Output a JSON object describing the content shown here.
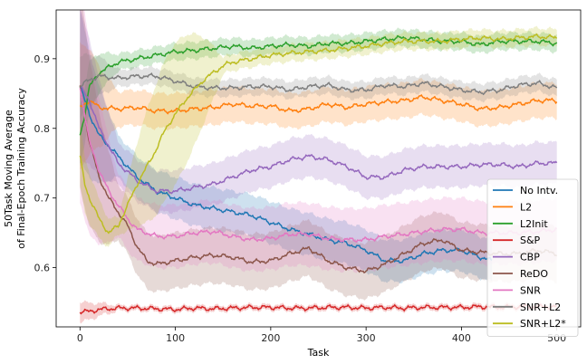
{
  "chart_data": {
    "type": "line",
    "title": "",
    "xlabel": "Task",
    "ylabel_lines": [
      "50Task Moving Average",
      "of Final-Epoch Training Accuracy"
    ],
    "xlim": [
      -25,
      525
    ],
    "ylim": [
      0.515,
      0.97
    ],
    "xticks": [
      0,
      100,
      200,
      300,
      400,
      500
    ],
    "yticks": [
      0.6,
      0.7,
      0.8,
      0.9
    ],
    "legend_position": "lower-right",
    "grid": false,
    "series": [
      {
        "name": "No Intv.",
        "color": "#1f77b4",
        "points": [
          [
            0,
            0.86
          ],
          [
            10,
            0.82
          ],
          [
            20,
            0.79
          ],
          [
            40,
            0.76
          ],
          [
            60,
            0.73
          ],
          [
            80,
            0.71
          ],
          [
            100,
            0.7
          ],
          [
            120,
            0.69
          ],
          [
            140,
            0.685
          ],
          [
            160,
            0.68
          ],
          [
            180,
            0.675
          ],
          [
            200,
            0.665
          ],
          [
            220,
            0.655
          ],
          [
            240,
            0.648
          ],
          [
            260,
            0.64
          ],
          [
            280,
            0.635
          ],
          [
            300,
            0.625
          ],
          [
            320,
            0.61
          ],
          [
            340,
            0.61
          ],
          [
            360,
            0.62
          ],
          [
            380,
            0.625
          ],
          [
            400,
            0.625
          ],
          [
            420,
            0.615
          ],
          [
            432,
            0.61
          ]
        ],
        "band": 0.03
      },
      {
        "name": "L2",
        "color": "#ff7f0e",
        "points": [
          [
            0,
            0.83
          ],
          [
            10,
            0.84
          ],
          [
            20,
            0.83
          ],
          [
            40,
            0.828
          ],
          [
            60,
            0.83
          ],
          [
            80,
            0.825
          ],
          [
            100,
            0.825
          ],
          [
            120,
            0.828
          ],
          [
            140,
            0.83
          ],
          [
            160,
            0.835
          ],
          [
            180,
            0.832
          ],
          [
            200,
            0.832
          ],
          [
            220,
            0.825
          ],
          [
            240,
            0.828
          ],
          [
            260,
            0.835
          ],
          [
            280,
            0.83
          ],
          [
            300,
            0.835
          ],
          [
            320,
            0.838
          ],
          [
            340,
            0.84
          ],
          [
            360,
            0.845
          ],
          [
            380,
            0.84
          ],
          [
            400,
            0.835
          ],
          [
            420,
            0.828
          ],
          [
            440,
            0.83
          ],
          [
            460,
            0.835
          ],
          [
            480,
            0.84
          ],
          [
            500,
            0.84
          ]
        ],
        "band": 0.025
      },
      {
        "name": "L2Init",
        "color": "#2ca02c",
        "points": [
          [
            0,
            0.79
          ],
          [
            5,
            0.82
          ],
          [
            10,
            0.86
          ],
          [
            20,
            0.88
          ],
          [
            40,
            0.895
          ],
          [
            60,
            0.9
          ],
          [
            80,
            0.905
          ],
          [
            100,
            0.91
          ],
          [
            120,
            0.912
          ],
          [
            140,
            0.915
          ],
          [
            160,
            0.918
          ],
          [
            180,
            0.915
          ],
          [
            200,
            0.918
          ],
          [
            220,
            0.92
          ],
          [
            240,
            0.918
          ],
          [
            260,
            0.922
          ],
          [
            280,
            0.922
          ],
          [
            300,
            0.925
          ],
          [
            320,
            0.928
          ],
          [
            340,
            0.93
          ],
          [
            360,
            0.928
          ],
          [
            380,
            0.925
          ],
          [
            400,
            0.925
          ],
          [
            420,
            0.92
          ],
          [
            440,
            0.925
          ],
          [
            460,
            0.925
          ],
          [
            480,
            0.925
          ],
          [
            500,
            0.922
          ]
        ],
        "band": 0.012
      },
      {
        "name": "S&P",
        "color": "#d62728",
        "points": [
          [
            0,
            0.537
          ],
          [
            10,
            0.537
          ],
          [
            20,
            0.54
          ],
          [
            40,
            0.542
          ],
          [
            60,
            0.542
          ],
          [
            80,
            0.541
          ],
          [
            100,
            0.54
          ],
          [
            120,
            0.542
          ],
          [
            140,
            0.541
          ],
          [
            160,
            0.542
          ],
          [
            180,
            0.543
          ],
          [
            200,
            0.543
          ],
          [
            220,
            0.542
          ],
          [
            240,
            0.542
          ],
          [
            260,
            0.543
          ],
          [
            280,
            0.543
          ],
          [
            300,
            0.542
          ],
          [
            320,
            0.543
          ],
          [
            340,
            0.542
          ],
          [
            360,
            0.543
          ],
          [
            380,
            0.543
          ],
          [
            400,
            0.543
          ],
          [
            420,
            0.544
          ],
          [
            440,
            0.543
          ],
          [
            460,
            0.544
          ],
          [
            480,
            0.544
          ],
          [
            500,
            0.544
          ]
        ],
        "band": 0.004
      },
      {
        "name": "CBP",
        "color": "#9467bd",
        "points": [
          [
            0,
            0.86
          ],
          [
            10,
            0.84
          ],
          [
            20,
            0.8
          ],
          [
            40,
            0.75
          ],
          [
            60,
            0.725
          ],
          [
            80,
            0.71
          ],
          [
            100,
            0.71
          ],
          [
            120,
            0.715
          ],
          [
            140,
            0.72
          ],
          [
            160,
            0.73
          ],
          [
            180,
            0.74
          ],
          [
            200,
            0.745
          ],
          [
            220,
            0.755
          ],
          [
            240,
            0.76
          ],
          [
            260,
            0.755
          ],
          [
            280,
            0.745
          ],
          [
            300,
            0.73
          ],
          [
            320,
            0.73
          ],
          [
            340,
            0.74
          ],
          [
            360,
            0.745
          ],
          [
            380,
            0.745
          ],
          [
            400,
            0.745
          ],
          [
            420,
            0.748
          ],
          [
            440,
            0.748
          ],
          [
            460,
            0.745
          ],
          [
            480,
            0.75
          ],
          [
            500,
            0.75
          ]
        ],
        "band": 0.03
      },
      {
        "name": "ReDO",
        "color": "#8c564b",
        "points": [
          [
            0,
            0.86
          ],
          [
            10,
            0.78
          ],
          [
            20,
            0.73
          ],
          [
            30,
            0.7
          ],
          [
            40,
            0.68
          ],
          [
            50,
            0.66
          ],
          [
            60,
            0.63
          ],
          [
            70,
            0.61
          ],
          [
            80,
            0.605
          ],
          [
            100,
            0.61
          ],
          [
            120,
            0.615
          ],
          [
            140,
            0.618
          ],
          [
            160,
            0.615
          ],
          [
            180,
            0.608
          ],
          [
            200,
            0.61
          ],
          [
            220,
            0.62
          ],
          [
            240,
            0.628
          ],
          [
            260,
            0.61
          ],
          [
            280,
            0.6
          ],
          [
            300,
            0.595
          ],
          [
            320,
            0.605
          ],
          [
            340,
            0.62
          ],
          [
            360,
            0.635
          ],
          [
            380,
            0.64
          ],
          [
            400,
            0.625
          ],
          [
            420,
            0.622
          ],
          [
            440,
            0.62
          ],
          [
            460,
            0.62
          ],
          [
            480,
            0.625
          ],
          [
            500,
            0.62
          ]
        ],
        "band": 0.04
      },
      {
        "name": "SNR",
        "color": "#e377c2",
        "points": [
          [
            0,
            0.86
          ],
          [
            10,
            0.78
          ],
          [
            20,
            0.74
          ],
          [
            30,
            0.71
          ],
          [
            40,
            0.69
          ],
          [
            50,
            0.67
          ],
          [
            60,
            0.655
          ],
          [
            80,
            0.645
          ],
          [
            100,
            0.645
          ],
          [
            120,
            0.65
          ],
          [
            140,
            0.652
          ],
          [
            160,
            0.645
          ],
          [
            180,
            0.64
          ],
          [
            200,
            0.642
          ],
          [
            220,
            0.648
          ],
          [
            240,
            0.648
          ],
          [
            260,
            0.642
          ],
          [
            280,
            0.64
          ],
          [
            300,
            0.64
          ],
          [
            320,
            0.645
          ],
          [
            340,
            0.648
          ],
          [
            360,
            0.652
          ],
          [
            380,
            0.655
          ],
          [
            400,
            0.655
          ],
          [
            420,
            0.65
          ],
          [
            440,
            0.65
          ],
          [
            460,
            0.65
          ],
          [
            480,
            0.652
          ],
          [
            500,
            0.655
          ]
        ],
        "band": 0.045
      },
      {
        "name": "SNR+L2",
        "color": "#7f7f7f",
        "points": [
          [
            0,
            0.86
          ],
          [
            10,
            0.87
          ],
          [
            20,
            0.875
          ],
          [
            40,
            0.872
          ],
          [
            60,
            0.875
          ],
          [
            80,
            0.875
          ],
          [
            100,
            0.868
          ],
          [
            120,
            0.86
          ],
          [
            140,
            0.858
          ],
          [
            160,
            0.858
          ],
          [
            180,
            0.86
          ],
          [
            200,
            0.86
          ],
          [
            220,
            0.855
          ],
          [
            240,
            0.86
          ],
          [
            260,
            0.862
          ],
          [
            280,
            0.855
          ],
          [
            300,
            0.855
          ],
          [
            320,
            0.862
          ],
          [
            340,
            0.86
          ],
          [
            360,
            0.865
          ],
          [
            380,
            0.86
          ],
          [
            400,
            0.855
          ],
          [
            420,
            0.852
          ],
          [
            440,
            0.855
          ],
          [
            460,
            0.862
          ],
          [
            480,
            0.865
          ],
          [
            500,
            0.858
          ]
        ],
        "band": 0.012
      },
      {
        "name": "SNR+L2*",
        "color": "#bcbd22",
        "points": [
          [
            0,
            0.76
          ],
          [
            5,
            0.72
          ],
          [
            10,
            0.7
          ],
          [
            20,
            0.67
          ],
          [
            30,
            0.65
          ],
          [
            40,
            0.66
          ],
          [
            50,
            0.69
          ],
          [
            60,
            0.72
          ],
          [
            70,
            0.745
          ],
          [
            80,
            0.77
          ],
          [
            90,
            0.8
          ],
          [
            100,
            0.82
          ],
          [
            110,
            0.84
          ],
          [
            120,
            0.855
          ],
          [
            130,
            0.87
          ],
          [
            140,
            0.88
          ],
          [
            150,
            0.89
          ],
          [
            160,
            0.895
          ],
          [
            180,
            0.9
          ],
          [
            200,
            0.905
          ],
          [
            220,
            0.908
          ],
          [
            240,
            0.91
          ],
          [
            260,
            0.912
          ],
          [
            280,
            0.915
          ],
          [
            300,
            0.918
          ],
          [
            320,
            0.922
          ],
          [
            340,
            0.925
          ],
          [
            360,
            0.925
          ],
          [
            380,
            0.925
          ],
          [
            400,
            0.928
          ],
          [
            420,
            0.93
          ],
          [
            440,
            0.928
          ],
          [
            460,
            0.93
          ],
          [
            480,
            0.932
          ],
          [
            500,
            0.93
          ]
        ],
        "band": 0.012
      }
    ]
  }
}
